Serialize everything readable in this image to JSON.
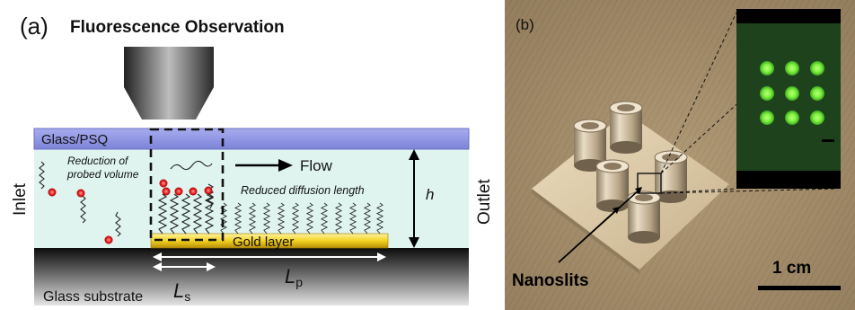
{
  "panel_a": {
    "label": "(a)",
    "title": "Fluorescence Observation",
    "top_layer": "Glass/PSQ",
    "inlet": "Inlet",
    "outlet": "Outlet",
    "flow": "Flow",
    "reduction_line1": "Reduction of",
    "reduction_line2": "probed volume",
    "diffusion": "Reduced diffusion length",
    "gold": "Gold layer",
    "substrate": "Glass substrate",
    "h": "h",
    "ls_main": "L",
    "ls_sub": "s",
    "lp_main": "L",
    "lp_sub": "p"
  },
  "panel_b": {
    "label": "(b)",
    "nanoslits": "Nanoslits",
    "scale": "1 cm",
    "colors": {
      "background": "#a48d6a",
      "fluorescence": "#79ff3a",
      "inset_bg": "#1e421c"
    }
  }
}
